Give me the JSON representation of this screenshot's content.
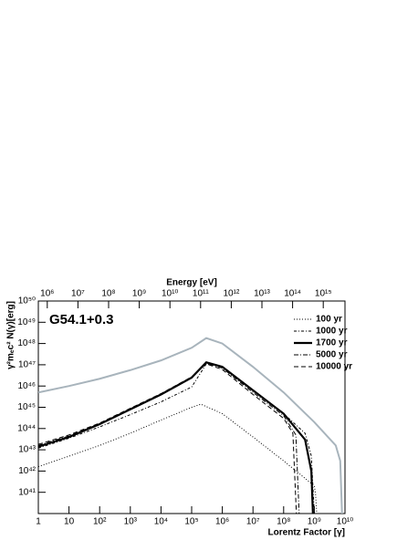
{
  "chart_data": {
    "type": "line",
    "log_x": true,
    "log_y": true,
    "annotation": "G54.1+0.3",
    "xlabel": "Lorentz Factor [γ]",
    "ylabel": "γ²mₑc² N(γ)[erg]",
    "x2label": "Energy [eV]",
    "xlim": [
      1,
      10000000000
    ],
    "xticks": [
      {
        "value": 1,
        "label": "1"
      },
      {
        "value": 10,
        "label": "10"
      },
      {
        "value": 100,
        "label": "10²"
      },
      {
        "value": 1000,
        "label": "10³"
      },
      {
        "value": 10000,
        "label": "10⁴"
      },
      {
        "value": 100000,
        "label": "10⁵"
      },
      {
        "value": 1000000,
        "label": "10⁶"
      },
      {
        "value": 10000000,
        "label": "10⁷"
      },
      {
        "value": 100000000,
        "label": "10⁸"
      },
      {
        "value": 1000000000,
        "label": "10⁹"
      },
      {
        "value": 10000000000,
        "label": "10¹⁰"
      }
    ],
    "x2lim": [
      511000,
      5110000000000000
    ],
    "x2ticks": [
      {
        "value": 1000000,
        "label": "10⁶"
      },
      {
        "value": 10000000,
        "label": "10⁷"
      },
      {
        "value": 100000000,
        "label": "10⁸"
      },
      {
        "value": 1000000000,
        "label": "10⁹"
      },
      {
        "value": 10000000000,
        "label": "10¹⁰"
      },
      {
        "value": 100000000000,
        "label": "10¹¹"
      },
      {
        "value": 1000000000000,
        "label": "10¹²"
      },
      {
        "value": 10000000000000,
        "label": "10¹³"
      },
      {
        "value": 100000000000000,
        "label": "10¹⁴"
      },
      {
        "value": 1000000000000000,
        "label": "10¹⁵"
      }
    ],
    "ylim": [
      1e+40,
      1e+50
    ],
    "yticks": [
      {
        "value": 1e+41,
        "label": "10⁴¹"
      },
      {
        "value": 1e+42,
        "label": "10⁴²"
      },
      {
        "value": 1e+43,
        "label": "10⁴³"
      },
      {
        "value": 1e+44,
        "label": "10⁴⁴"
      },
      {
        "value": 1e+45,
        "label": "10⁴⁵"
      },
      {
        "value": 1e+46,
        "label": "10⁴⁶"
      },
      {
        "value": 1e+47,
        "label": "10⁴⁷"
      },
      {
        "value": 1e+48,
        "label": "10⁴⁸"
      },
      {
        "value": 1e+49,
        "label": "10⁴⁹"
      },
      {
        "value": 1e+50,
        "label": "10⁵⁰"
      }
    ],
    "legend": "upper right",
    "series": [
      {
        "color": "#a8b4bc",
        "width": 2,
        "dash": "solid",
        "x": [
          1,
          10,
          100,
          1000,
          10000,
          100000,
          300000,
          1000000,
          10000000,
          100000000,
          1000000000,
          5000000000,
          7000000000,
          8000000000
        ],
        "values": [
          5e+45,
          1e+46,
          2.2e+46,
          5.6e+46,
          1.6e+47,
          6.3e+47,
          1.8e+48,
          1e+48,
          8e+46,
          5e+45,
          2e+44,
          1.6e+43,
          3e+42,
          1e+40
        ]
      },
      {
        "name": "100 yr",
        "color": "#000000",
        "width": 1,
        "dash": "dotted",
        "x": [
          1,
          10,
          100,
          1000,
          10000,
          100000,
          200000,
          1000000,
          10000000,
          100000000,
          1000000000,
          1100000000,
          1200000000
        ],
        "values": [
          1.6e+42,
          5e+42,
          1.6e+43,
          6e+43,
          2.5e+44,
          1e+45,
          1.4e+45,
          5e+44,
          4e+43,
          3e+42,
          2e+41,
          8e+40,
          1e+40
        ]
      },
      {
        "name": "1000 yr",
        "color": "#000000",
        "width": 1,
        "dash": "dashdot2",
        "x": [
          1,
          10,
          100,
          1000,
          10000,
          100000,
          300000,
          1000000,
          10000000,
          100000000,
          500000000,
          800000000,
          1000000000
        ],
        "values": [
          1.2e+43,
          3.5e+43,
          1.2e+44,
          4.5e+44,
          1.8e+45,
          9e+45,
          1.1e+47,
          8e+46,
          6e+45,
          5e+44,
          6e+43,
          5e+42,
          1e+40
        ]
      },
      {
        "name": "1700 yr",
        "color": "#000000",
        "width": 2.2,
        "dash": "solid",
        "x": [
          1,
          10,
          100,
          1000,
          10000,
          100000,
          300000,
          1000000,
          10000000,
          100000000,
          500000000,
          800000000,
          900000000
        ],
        "values": [
          1.4e+43,
          4e+43,
          1.6e+44,
          8e+44,
          4e+45,
          2.5e+46,
          1.3e+47,
          8e+46,
          6.3e+45,
          5e+44,
          3e+43,
          1e+42,
          1e+40
        ]
      },
      {
        "name": "5000 yr",
        "color": "#000000",
        "width": 1,
        "dash": "dashdot",
        "x": [
          1,
          10,
          100,
          1000,
          10000,
          100000,
          300000,
          1000000,
          10000000,
          100000000,
          250000000,
          320000000
        ],
        "values": [
          1.6e+43,
          4.5e+43,
          1.7e+44,
          8.5e+44,
          4.2e+45,
          2.6e+46,
          1.2e+47,
          7e+46,
          5e+45,
          4e+44,
          5e+43,
          1e+40
        ]
      },
      {
        "name": "10000 yr",
        "color": "#000000",
        "width": 1,
        "dash": "dashed",
        "x": [
          1,
          10,
          100,
          1000,
          10000,
          100000,
          300000,
          1000000,
          10000000,
          100000000,
          200000000,
          260000000
        ],
        "values": [
          1.8e+43,
          5e+43,
          1.8e+44,
          9e+44,
          4.4e+45,
          2.7e+46,
          1.1e+47,
          6e+46,
          4e+45,
          3e+44,
          6e+43,
          1e+40
        ]
      }
    ]
  }
}
